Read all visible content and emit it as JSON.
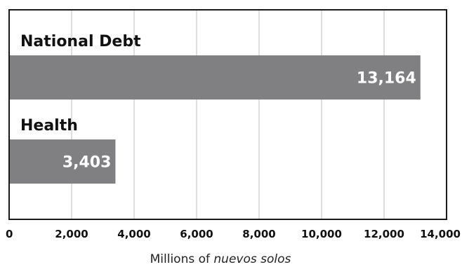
{
  "chart_data": {
    "type": "bar",
    "orientation": "horizontal",
    "categories": [
      "National Debt",
      "Health"
    ],
    "values": [
      13164,
      3403
    ],
    "value_labels": [
      "13,164",
      "3,403"
    ],
    "xlabel_prefix": "Millions of ",
    "xlabel_italic": "nuevos solos",
    "xlim": [
      0,
      14000
    ],
    "xticks": [
      0,
      2000,
      4000,
      6000,
      8000,
      10000,
      12000,
      14000
    ],
    "xtick_labels": [
      "0",
      "2,000",
      "4,000",
      "6,000",
      "8,000",
      "10,000",
      "12,000",
      "14,000"
    ],
    "grid": "vertical",
    "colors": {
      "bar": "#808082",
      "grid": "#bdbdbd",
      "frame": "#1a1a1a"
    }
  }
}
